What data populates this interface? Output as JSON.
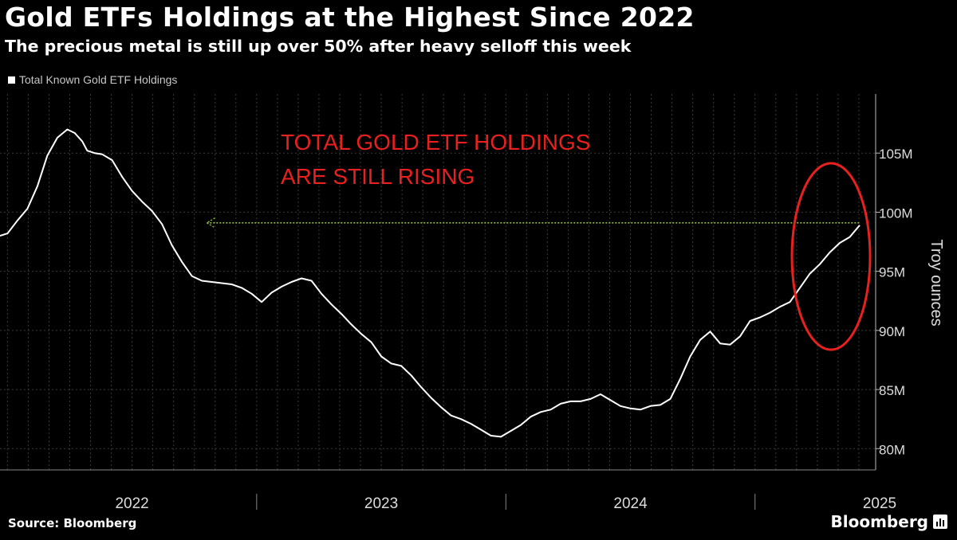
{
  "header": {
    "title": "Gold ETFs Holdings at the Highest Since 2022",
    "subtitle": "The precious metal is still up over 50% after heavy selloff this week"
  },
  "legend": {
    "label": "Total Known Gold ETF Holdings"
  },
  "annotation": {
    "line1": "TOTAL GOLD ETF HOLDINGS",
    "line2": "ARE STILL RISING",
    "color": "#e8201e"
  },
  "footer": {
    "source": "Source: Bloomberg",
    "brand": "Bloomberg"
  },
  "colors": {
    "background": "#000000",
    "line": "#ffffff",
    "grid": "#3a3a3a",
    "reference_line": "#8fbf3a",
    "highlight": "#e8201e"
  },
  "chart_data": {
    "type": "line",
    "title": "Gold ETFs Holdings at the Highest Since 2022",
    "subtitle": "The precious metal is still up over 50% after heavy selloff this week",
    "xlabel": "",
    "ylabel": "Troy ounces",
    "x_start": 2021.97,
    "x_end": 2025.42,
    "ylim": [
      78.2,
      110
    ],
    "y_ticks": [
      80,
      85,
      90,
      95,
      100,
      105
    ],
    "y_tick_labels": [
      "80M",
      "85M",
      "90M",
      "95M",
      "100M",
      "105M"
    ],
    "x_tick_labels": [
      "2022",
      "2023",
      "2024",
      "2025"
    ],
    "x_label_positions": [
      2022.5,
      2023.5,
      2024.5,
      2025.5
    ],
    "x_separators": [
      2023.0,
      2024.0,
      2025.0
    ],
    "reference_value": 99.1,
    "reference_start": 2022.8,
    "legend": [
      "Total Known Gold ETF Holdings"
    ],
    "legend_position": "top-left",
    "grid": true,
    "series": [
      {
        "name": "Total Known Gold ETF Holdings",
        "x": [
          2021.97,
          2022.0,
          2022.04,
          2022.08,
          2022.12,
          2022.16,
          2022.2,
          2022.24,
          2022.27,
          2022.3,
          2022.32,
          2022.35,
          2022.38,
          2022.42,
          2022.46,
          2022.5,
          2022.54,
          2022.58,
          2022.62,
          2022.66,
          2022.7,
          2022.74,
          2022.78,
          2022.82,
          2022.86,
          2022.9,
          2022.94,
          2022.98,
          2023.02,
          2023.06,
          2023.1,
          2023.14,
          2023.18,
          2023.22,
          2023.26,
          2023.3,
          2023.34,
          2023.38,
          2023.42,
          2023.46,
          2023.5,
          2023.54,
          2023.58,
          2023.62,
          2023.66,
          2023.7,
          2023.74,
          2023.78,
          2023.82,
          2023.86,
          2023.9,
          2023.94,
          2023.98,
          2024.02,
          2024.06,
          2024.1,
          2024.14,
          2024.18,
          2024.22,
          2024.26,
          2024.3,
          2024.34,
          2024.38,
          2024.42,
          2024.46,
          2024.5,
          2024.54,
          2024.58,
          2024.62,
          2024.66,
          2024.7,
          2024.74,
          2024.78,
          2024.82,
          2024.86,
          2024.9,
          2024.94,
          2024.98,
          2025.02,
          2025.06,
          2025.1,
          2025.14,
          2025.18,
          2025.22,
          2025.26,
          2025.3,
          2025.34,
          2025.38,
          2025.42
        ],
        "values": [
          98.0,
          98.2,
          99.3,
          100.3,
          102.2,
          104.8,
          106.3,
          107.0,
          106.7,
          106.0,
          105.2,
          105.0,
          104.9,
          104.4,
          103.0,
          101.8,
          100.9,
          100.1,
          99.0,
          97.2,
          95.8,
          94.6,
          94.2,
          94.1,
          94.0,
          93.9,
          93.6,
          93.1,
          92.4,
          93.2,
          93.7,
          94.1,
          94.4,
          94.2,
          93.1,
          92.2,
          91.4,
          90.5,
          89.7,
          89.0,
          87.8,
          87.2,
          87.0,
          86.2,
          85.2,
          84.3,
          83.5,
          82.8,
          82.5,
          82.1,
          81.6,
          81.1,
          81.0,
          81.5,
          82.0,
          82.7,
          83.1,
          83.3,
          83.8,
          84.0,
          84.0,
          84.2,
          84.6,
          84.1,
          83.6,
          83.4,
          83.3,
          83.6,
          83.7,
          84.2,
          85.9,
          87.8,
          89.2,
          89.9,
          88.9,
          88.8,
          89.5,
          90.8,
          91.1,
          91.5,
          92.0,
          92.4,
          93.6,
          94.8,
          95.6,
          96.6,
          97.4,
          97.9,
          98.9
        ]
      }
    ]
  }
}
